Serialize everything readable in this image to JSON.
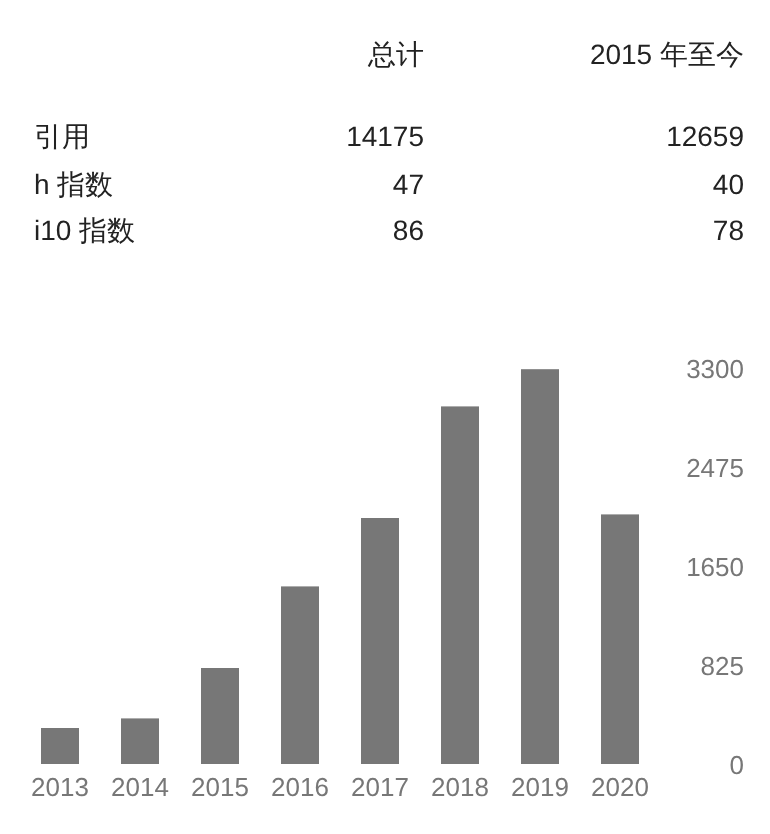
{
  "chart_data": [
    {
      "type": "other",
      "categories": [
        "引用",
        "h 指数",
        "i10 指数"
      ],
      "data_labels": true,
      "series": [
        {
          "name": "总计",
          "values": [
            14175,
            47,
            86
          ]
        },
        {
          "name": "2015 年至今",
          "values": [
            12659,
            40,
            78
          ]
        }
      ]
    },
    {
      "type": "bar",
      "categories": [
        "2013",
        "2014",
        "2015",
        "2016",
        "2017",
        "2018",
        "2019",
        "2020"
      ],
      "values": [
        300,
        380,
        800,
        1480,
        2050,
        2980,
        3290,
        2080
      ],
      "color": "#777777",
      "ylim": [
        0,
        3300
      ],
      "yticks": [
        0,
        825,
        1650,
        2475,
        3300
      ]
    }
  ]
}
